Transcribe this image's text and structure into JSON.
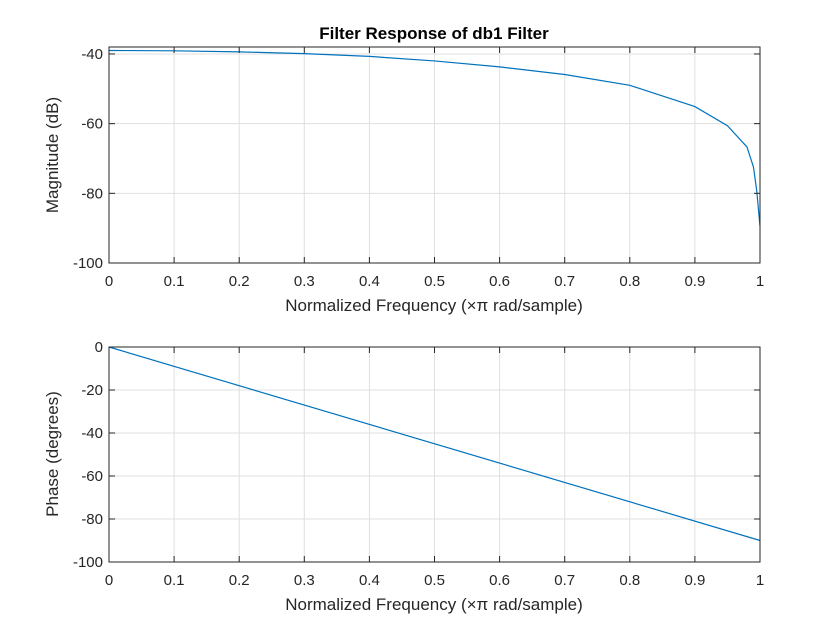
{
  "chart_data": [
    {
      "type": "line",
      "title": "Filter Response of db1 Filter",
      "xlabel": "Normalized Frequency  (×π rad/sample)",
      "ylabel": "Magnitude (dB)",
      "xlim": [
        0,
        1
      ],
      "ylim": [
        -100,
        -38
      ],
      "xticks": [
        "0",
        "0.1",
        "0.2",
        "0.3",
        "0.4",
        "0.5",
        "0.6",
        "0.7",
        "0.8",
        "0.9",
        "1"
      ],
      "yticks": [
        "-40",
        "-60",
        "-80",
        "-100"
      ],
      "grid": true,
      "color": "#0072BD",
      "series": [
        {
          "x": [
            0,
            0.1,
            0.2,
            0.3,
            0.4,
            0.5,
            0.6,
            0.7,
            0.8,
            0.9,
            0.95,
            0.98,
            0.99,
            0.995,
            1
          ],
          "y": [
            -39,
            -39.1,
            -39.4,
            -39.9,
            -40.7,
            -42.0,
            -43.7,
            -45.9,
            -49.0,
            -55.1,
            -60.6,
            -66.7,
            -72.5,
            -79.3,
            -89.5
          ]
        }
      ]
    },
    {
      "type": "line",
      "title": "",
      "xlabel": "Normalized Frequency  (×π rad/sample)",
      "ylabel": "Phase (degrees)",
      "xlim": [
        0,
        1
      ],
      "ylim": [
        -100,
        0
      ],
      "xticks": [
        "0",
        "0.1",
        "0.2",
        "0.3",
        "0.4",
        "0.5",
        "0.6",
        "0.7",
        "0.8",
        "0.9",
        "1"
      ],
      "yticks": [
        "0",
        "-20",
        "-40",
        "-60",
        "-80",
        "-100"
      ],
      "grid": true,
      "color": "#0072BD",
      "series": [
        {
          "x": [
            0,
            1
          ],
          "y": [
            0,
            -90
          ]
        }
      ]
    }
  ]
}
